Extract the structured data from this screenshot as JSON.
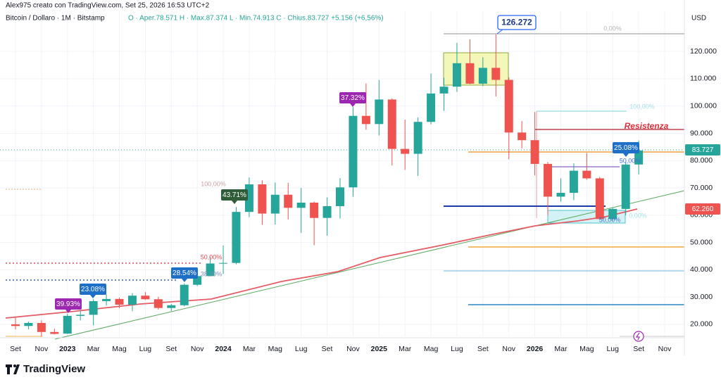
{
  "header": {
    "author": "Alex975 creato con TradingView.com, Set 25, 2026 16:53 UTC+2",
    "logo": "TradingView"
  },
  "chart_data": {
    "type": "candlestick",
    "title": "Bitcoin / Dollaro · 1M · Bitstamp",
    "ohlc_text": "O · Aper.78.571 H · Max.87.374 L · Min.74.913 C · Chius.83.727 +5.156 (+6,56%)",
    "y_axis_label": "USD",
    "categories": [
      "Set",
      null,
      "Nov",
      null,
      "2023",
      null,
      "Mar",
      null,
      "Mag",
      null,
      "Lug",
      null,
      "Set",
      null,
      "Nov",
      null,
      "2024",
      null,
      "Mar",
      null,
      "Mag",
      null,
      "Lug",
      null,
      "Set",
      null,
      "Nov",
      null,
      "2025",
      null,
      "Mar",
      null,
      "Mag",
      null,
      "Lug",
      null,
      "Set",
      null,
      "Nov",
      null,
      "2026",
      null,
      "Mar",
      null,
      "Mag",
      null,
      "Lug",
      null,
      "Set",
      null,
      "Nov"
    ],
    "open": [
      20000,
      19400,
      20500,
      17200,
      16600,
      23100,
      23500,
      28500,
      29300,
      27200,
      30500,
      29200,
      26000,
      27000,
      34500,
      37700,
      42300,
      42500,
      61200,
      71300,
      60600,
      67500,
      62700,
      64600,
      59000,
      63300,
      70200,
      96400,
      93400,
      102400,
      84300,
      82500,
      94200,
      104600,
      107100,
      115700,
      108200,
      114000,
      109600,
      90300,
      87500,
      78800,
      66800,
      68200,
      76300,
      73500,
      58600,
      62300,
      78571,
      null,
      null
    ],
    "high": [
      22700,
      21000,
      21500,
      18400,
      23900,
      25200,
      29200,
      31000,
      29800,
      31400,
      31800,
      30100,
      27500,
      35000,
      38000,
      44700,
      48900,
      63000,
      73800,
      72800,
      72000,
      71900,
      70000,
      65000,
      66500,
      73600,
      99600,
      108300,
      109600,
      102800,
      95000,
      95800,
      111900,
      110400,
      123200,
      124500,
      117900,
      126272,
      110500,
      94500,
      97800,
      79500,
      73500,
      79000,
      82800,
      74000,
      62900,
      79500,
      87374,
      null,
      null
    ],
    "low": [
      18100,
      18200,
      15500,
      16300,
      16500,
      21400,
      19600,
      26900,
      25900,
      24800,
      28900,
      25400,
      24900,
      26600,
      34000,
      37600,
      38500,
      42000,
      59300,
      56500,
      56600,
      58400,
      53500,
      49000,
      52500,
      58800,
      66800,
      91300,
      89200,
      78200,
      76600,
      74400,
      93300,
      98200,
      105200,
      108000,
      107300,
      103500,
      80500,
      84500,
      74600,
      60100,
      65000,
      65500,
      73000,
      58500,
      58000,
      60000,
      74913,
      null,
      null
    ],
    "close": [
      19400,
      20500,
      17200,
      16500,
      23100,
      23500,
      28500,
      29300,
      27200,
      30500,
      29200,
      26000,
      27000,
      34500,
      37700,
      42300,
      42500,
      61200,
      71300,
      60600,
      67500,
      62700,
      64600,
      59000,
      63300,
      70200,
      96400,
      93400,
      102400,
      84300,
      82500,
      94200,
      104600,
      107100,
      115700,
      108200,
      114000,
      109600,
      90300,
      87500,
      78800,
      66800,
      68200,
      76300,
      73500,
      58600,
      62300,
      78571,
      83727,
      null,
      null
    ],
    "ylim": [
      15600,
      135000
    ],
    "yticks": [
      {
        "value": 20000,
        "label": "20.000"
      },
      {
        "value": 30000,
        "label": "30.000"
      },
      {
        "value": 40000,
        "label": "40.000"
      },
      {
        "value": 50000,
        "label": "50.000"
      },
      {
        "value": 60000,
        "label": "60.000"
      },
      {
        "value": 70000,
        "label": "70.000"
      },
      {
        "value": 80000,
        "label": "80.000"
      },
      {
        "value": 90000,
        "label": "90.000"
      },
      {
        "value": 100000,
        "label": "100.000"
      },
      {
        "value": 110000,
        "label": "110.000"
      },
      {
        "value": 120000,
        "label": "120.000"
      }
    ],
    "grid": true,
    "up_color": "#26a69a",
    "down_color": "#ef5350",
    "annotations": [
      "39.93%",
      "23.08%",
      "28.54%",
      "43.71%",
      "37.32%",
      "126.272",
      "25.08%",
      "Resistenza",
      "100,00%",
      "50,00%",
      "38,20%",
      "0,00%",
      "100,00%",
      "50,00%",
      "50,00%",
      "0,00%",
      "83.727",
      "62.260"
    ]
  }
}
